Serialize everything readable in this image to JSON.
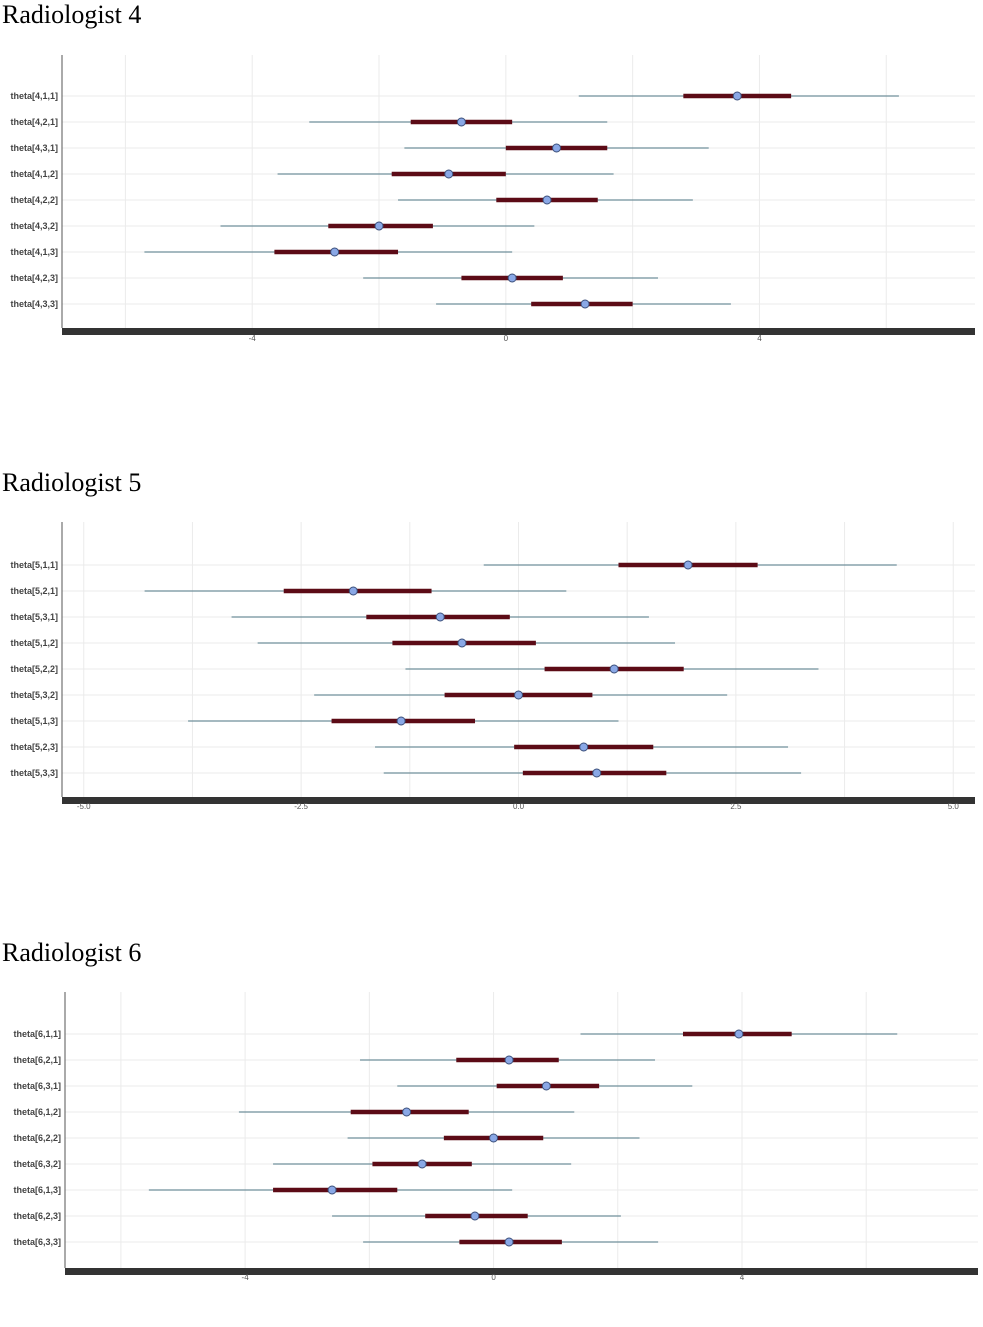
{
  "colors": {
    "outer_interval": "#6f8f9a",
    "inner_interval": "#5c0b16",
    "point_fill": "#8aa8e6",
    "point_stroke": "#3b4f7a",
    "grid": "#ebebeb",
    "axis": "#333333"
  },
  "chart_data": [
    {
      "type": "interval",
      "title": "Radiologist 4",
      "xlim": [
        -7.0,
        7.4
      ],
      "xticks": [
        -4,
        0,
        4
      ],
      "xtick_labels": [
        "-4",
        "0",
        "4"
      ],
      "grid": true,
      "categories": [
        "theta[4,1,1]",
        "theta[4,2,1]",
        "theta[4,3,1]",
        "theta[4,1,2]",
        "theta[4,2,2]",
        "theta[4,3,2]",
        "theta[4,1,3]",
        "theta[4,2,3]",
        "theta[4,3,3]"
      ],
      "point": [
        3.65,
        -0.7,
        0.8,
        -0.9,
        0.65,
        -2.0,
        -2.7,
        0.1,
        1.25
      ],
      "inner": [
        [
          2.8,
          4.5
        ],
        [
          -1.5,
          0.1
        ],
        [
          0.0,
          1.6
        ],
        [
          -1.8,
          0.0
        ],
        [
          -0.15,
          1.45
        ],
        [
          -2.8,
          -1.15
        ],
        [
          -3.65,
          -1.7
        ],
        [
          -0.7,
          0.9
        ],
        [
          0.4,
          2.0
        ]
      ],
      "outer": [
        [
          1.15,
          6.2
        ],
        [
          -3.1,
          1.6
        ],
        [
          -1.6,
          3.2
        ],
        [
          -3.6,
          1.7
        ],
        [
          -1.7,
          2.95
        ],
        [
          -4.5,
          0.45
        ],
        [
          -5.7,
          0.1
        ],
        [
          -2.25,
          2.4
        ],
        [
          -1.1,
          3.55
        ]
      ]
    },
    {
      "type": "interval",
      "title": "Radiologist 5",
      "xlim": [
        -5.25,
        5.25
      ],
      "xticks": [
        -5.0,
        -2.5,
        0.0,
        2.5,
        5.0
      ],
      "xtick_labels": [
        "-5.0",
        "-2.5",
        "0.0",
        "2.5",
        "5.0"
      ],
      "grid": true,
      "categories": [
        "theta[5,1,1]",
        "theta[5,2,1]",
        "theta[5,3,1]",
        "theta[5,1,2]",
        "theta[5,2,2]",
        "theta[5,3,2]",
        "theta[5,1,3]",
        "theta[5,2,3]",
        "theta[5,3,3]"
      ],
      "point": [
        1.95,
        -1.9,
        -0.9,
        -0.65,
        1.1,
        0.0,
        -1.35,
        0.75,
        0.9
      ],
      "inner": [
        [
          1.15,
          2.75
        ],
        [
          -2.7,
          -1.0
        ],
        [
          -1.75,
          -0.1
        ],
        [
          -1.45,
          0.2
        ],
        [
          0.3,
          1.9
        ],
        [
          -0.85,
          0.85
        ],
        [
          -2.15,
          -0.5
        ],
        [
          -0.05,
          1.55
        ],
        [
          0.05,
          1.7
        ]
      ],
      "outer": [
        [
          -0.4,
          4.35
        ],
        [
          -4.3,
          0.55
        ],
        [
          -3.3,
          1.5
        ],
        [
          -3.0,
          1.8
        ],
        [
          -1.3,
          3.45
        ],
        [
          -2.35,
          2.4
        ],
        [
          -3.8,
          1.15
        ],
        [
          -1.65,
          3.1
        ],
        [
          -1.55,
          3.25
        ]
      ]
    },
    {
      "type": "interval",
      "title": "Radiologist 6",
      "xlim": [
        -6.9,
        7.8
      ],
      "xticks": [
        -4,
        0,
        4
      ],
      "xtick_labels": [
        "-4",
        "0",
        "4"
      ],
      "grid": true,
      "categories": [
        "theta[6,1,1]",
        "theta[6,2,1]",
        "theta[6,3,1]",
        "theta[6,1,2]",
        "theta[6,2,2]",
        "theta[6,3,2]",
        "theta[6,1,3]",
        "theta[6,2,3]",
        "theta[6,3,3]"
      ],
      "point": [
        3.95,
        0.25,
        0.85,
        -1.4,
        0.0,
        -1.15,
        -2.6,
        -0.3,
        0.25
      ],
      "inner": [
        [
          3.05,
          4.8
        ],
        [
          -0.6,
          1.05
        ],
        [
          0.05,
          1.7
        ],
        [
          -2.3,
          -0.4
        ],
        [
          -0.8,
          0.8
        ],
        [
          -1.95,
          -0.35
        ],
        [
          -3.55,
          -1.55
        ],
        [
          -1.1,
          0.55
        ],
        [
          -0.55,
          1.1
        ]
      ],
      "outer": [
        [
          1.4,
          6.5
        ],
        [
          -2.15,
          2.6
        ],
        [
          -1.55,
          3.2
        ],
        [
          -4.1,
          1.3
        ],
        [
          -2.35,
          2.35
        ],
        [
          -3.55,
          1.25
        ],
        [
          -5.55,
          0.3
        ],
        [
          -2.6,
          2.05
        ],
        [
          -2.1,
          2.65
        ]
      ]
    }
  ]
}
